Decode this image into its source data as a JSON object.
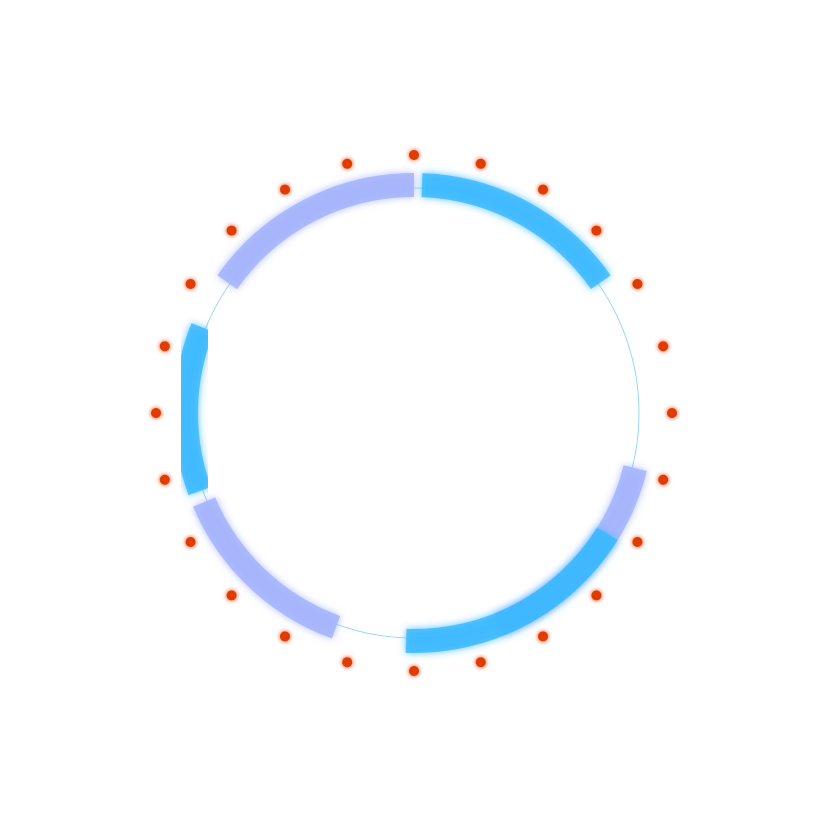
{
  "ring": {
    "colors": {
      "guide": "#7fd0ff",
      "arc_blue": "#3bb8ff",
      "arc_lavender": "#a4b4fb",
      "dot": "#e03a06"
    },
    "dot_count": 24,
    "arcs": [
      {
        "style": "arc_blue",
        "start_deg": 2,
        "end_deg": 55
      },
      {
        "style": "arc_lavender",
        "start_deg": 104,
        "end_deg": 158
      },
      {
        "style": "arc_blue",
        "start_deg": 122,
        "end_deg": 182
      },
      {
        "style": "arc_lavender",
        "start_deg": 200,
        "end_deg": 247
      },
      {
        "style": "arc_blue",
        "start_deg": 250,
        "end_deg": 292
      },
      {
        "style": "arc_lavender",
        "start_deg": 305,
        "end_deg": 360
      }
    ]
  }
}
